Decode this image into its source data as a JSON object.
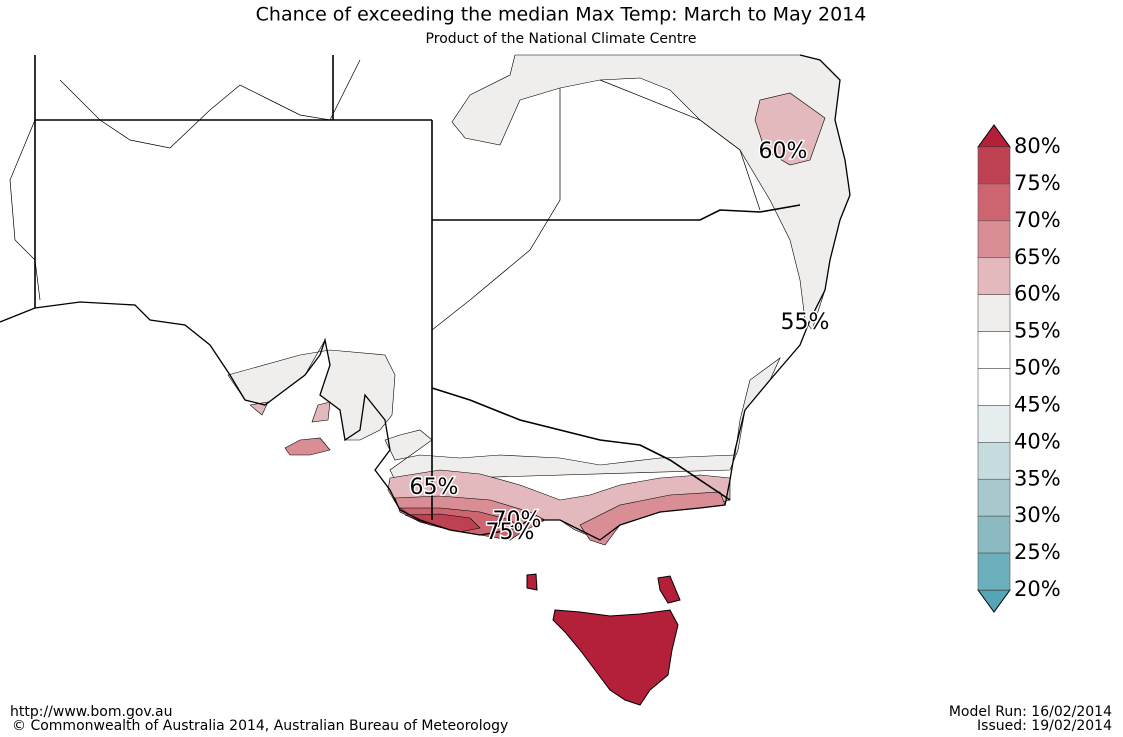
{
  "header": {
    "title": "Chance of exceeding the median Max Temp: March to May 2014",
    "subtitle": "Product of the National Climate Centre"
  },
  "legend": {
    "labels": [
      "80%",
      "75%",
      "70%",
      "65%",
      "60%",
      "55%",
      "50%",
      "45%",
      "40%",
      "35%",
      "30%",
      "25%",
      "20%"
    ],
    "colors": [
      "#bd4150",
      "#cd6570",
      "#d98e96",
      "#e4b9bd",
      "#efeeec",
      "#ffffff",
      "#ffffff",
      "#e6eef0",
      "#c7dcdf",
      "#a7c8cc",
      "#8cbac2",
      "#6bb0bc"
    ],
    "top_color": "#b41f3a",
    "bottom_color": "#55a5b5"
  },
  "contour_labels": [
    "60%",
    "55%",
    "65%",
    "70%",
    "75%"
  ],
  "footer": {
    "url": "http://www.bom.gov.au",
    "copyright": "©  Commonwealth of Australia 2014, Australian Bureau of Meteorology",
    "model_run": "Model Run: 16/02/2014",
    "issued": "Issued: 19/02/2014"
  }
}
